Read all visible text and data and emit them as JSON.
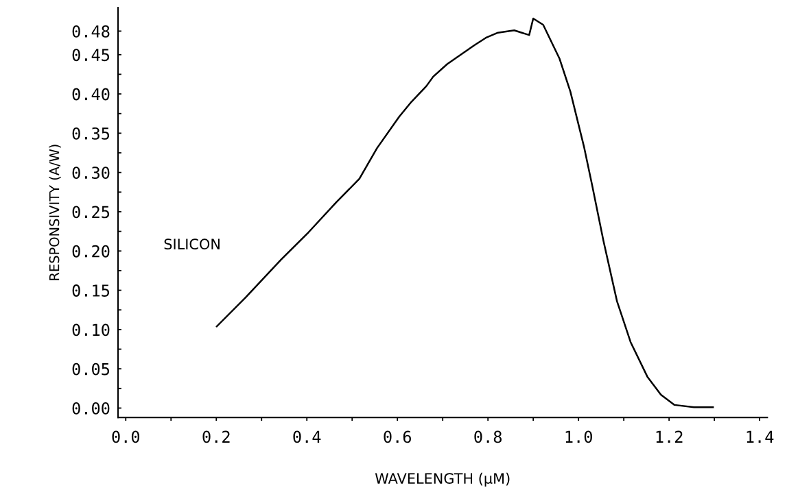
{
  "chart_data": {
    "type": "line",
    "xlabel": "WAVELENGTH (μM)",
    "ylabel": "RESPONSIVITY (A/W)",
    "annotations": [
      "SILICON"
    ],
    "series": [
      {
        "color": "#000000",
        "x": [
          0.201,
          0.265,
          0.343,
          0.404,
          0.465,
          0.516,
          0.555,
          0.604,
          0.631,
          0.664,
          0.679,
          0.71,
          0.74,
          0.77,
          0.797,
          0.822,
          0.858,
          0.891,
          0.9,
          0.922,
          0.958,
          0.982,
          1.012,
          1.03,
          1.055,
          1.085,
          1.115,
          1.152,
          1.182,
          1.212,
          1.255,
          1.297
        ],
        "values": [
          0.104,
          0.141,
          0.189,
          0.224,
          0.262,
          0.292,
          0.331,
          0.371,
          0.39,
          0.41,
          0.422,
          0.438,
          0.45,
          0.462,
          0.472,
          0.478,
          0.481,
          0.475,
          0.496,
          0.488,
          0.445,
          0.403,
          0.333,
          0.284,
          0.213,
          0.136,
          0.084,
          0.04,
          0.017,
          0.004,
          0.001,
          0.001
        ]
      }
    ],
    "xlim": [
      -0.017,
      1.417
    ],
    "ylim": [
      -0.012,
      0.51
    ],
    "xticks": [
      {
        "value": 0.0,
        "label": "0.0"
      },
      {
        "value": 0.1,
        "label": null
      },
      {
        "value": 0.2,
        "label": "0.2"
      },
      {
        "value": 0.3,
        "label": null
      },
      {
        "value": 0.4,
        "label": "0.4"
      },
      {
        "value": 0.5,
        "label": null
      },
      {
        "value": 0.6,
        "label": "0.6"
      },
      {
        "value": 0.7,
        "label": null
      },
      {
        "value": 0.8,
        "label": "0.8"
      },
      {
        "value": 0.9,
        "label": null
      },
      {
        "value": 1.0,
        "label": "1.0"
      },
      {
        "value": 1.1,
        "label": null
      },
      {
        "value": 1.2,
        "label": "1.2"
      },
      {
        "value": 1.3,
        "label": null
      },
      {
        "value": 1.4,
        "label": "1.4"
      }
    ],
    "yticks": [
      {
        "value": 0.0,
        "label": "0.00"
      },
      {
        "value": 0.025,
        "label": null
      },
      {
        "value": 0.05,
        "label": "0.05"
      },
      {
        "value": 0.075,
        "label": null
      },
      {
        "value": 0.1,
        "label": "0.10"
      },
      {
        "value": 0.125,
        "label": null
      },
      {
        "value": 0.15,
        "label": "0.15"
      },
      {
        "value": 0.175,
        "label": null
      },
      {
        "value": 0.2,
        "label": "0.20"
      },
      {
        "value": 0.225,
        "label": null
      },
      {
        "value": 0.25,
        "label": "0.25"
      },
      {
        "value": 0.275,
        "label": null
      },
      {
        "value": 0.3,
        "label": "0.30"
      },
      {
        "value": 0.325,
        "label": null
      },
      {
        "value": 0.35,
        "label": "0.35"
      },
      {
        "value": 0.375,
        "label": null
      },
      {
        "value": 0.4,
        "label": "0.40"
      },
      {
        "value": 0.425,
        "label": null
      },
      {
        "value": 0.45,
        "label": "0.45"
      },
      {
        "value": 0.48,
        "label": "0.48"
      }
    ],
    "grid": false,
    "legend": false,
    "marker": "none",
    "line_style": "solid"
  }
}
